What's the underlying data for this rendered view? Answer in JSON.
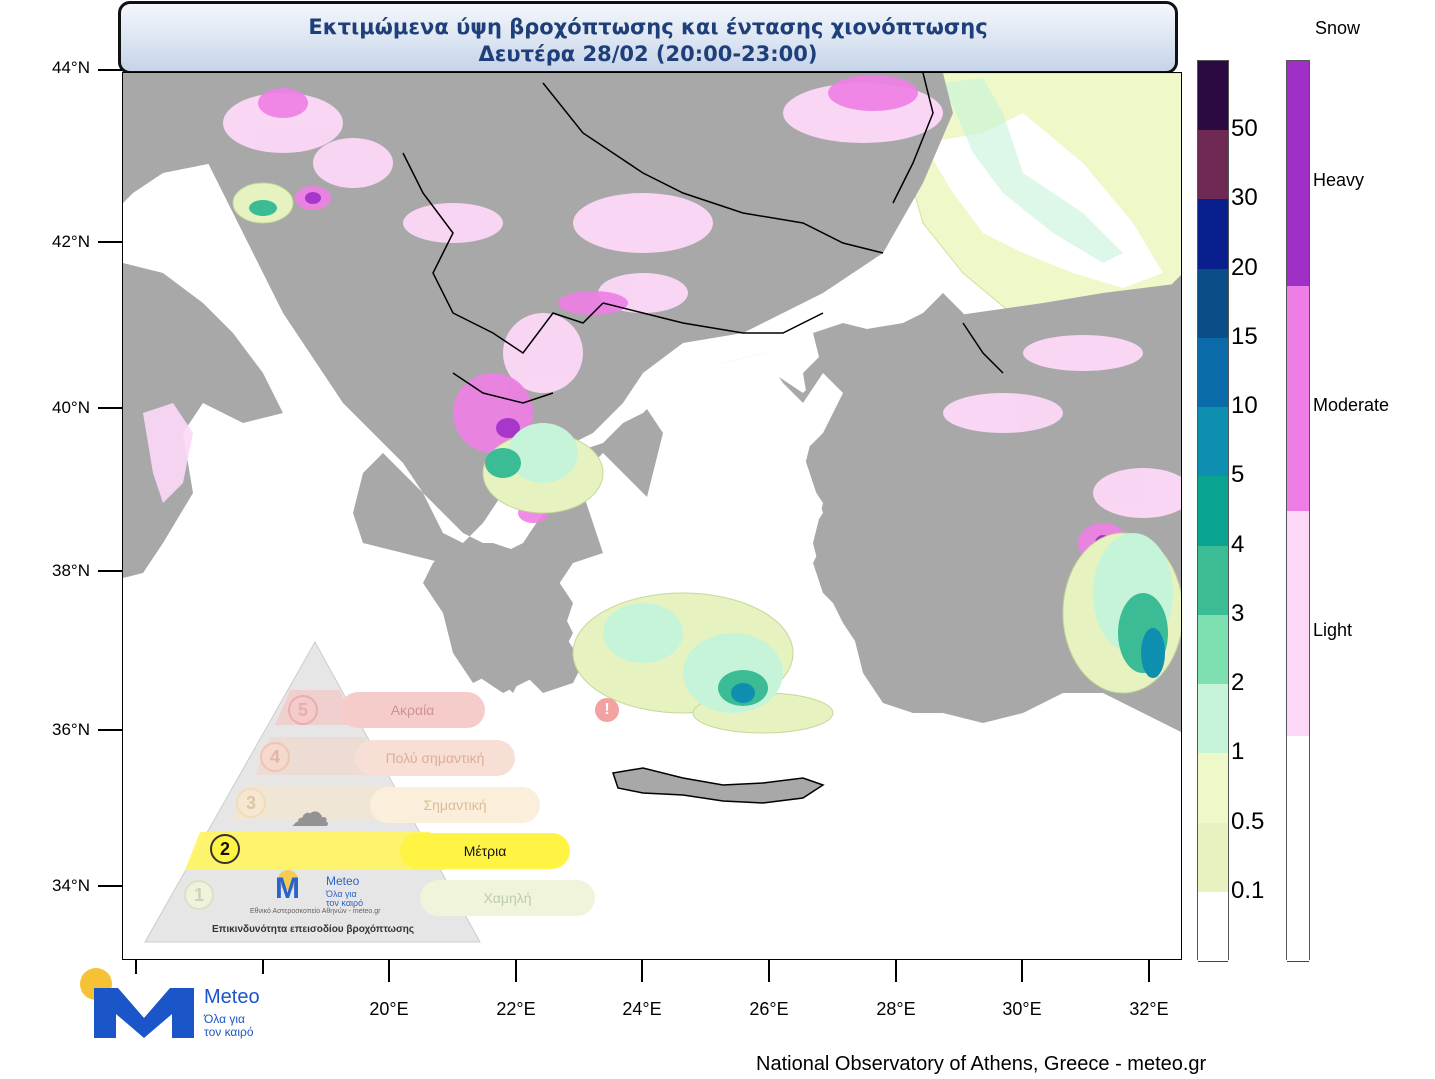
{
  "title": {
    "line1": "Εκτιμώμενα ύψη βροχόπτωσης και έντασης χιονόπτωσης",
    "line2": "Δευτέρα 28/02 (20:00-23:00)"
  },
  "lat_labels": [
    "44°N",
    "42°N",
    "40°N",
    "38°N",
    "36°N",
    "34°N"
  ],
  "lon_labels": [
    "20°E",
    "22°E",
    "24°E",
    "26°E",
    "28°E",
    "30°E",
    "32°E"
  ],
  "rain_colorbar": {
    "labels": [
      "50",
      "30",
      "20",
      "15",
      "10",
      "5",
      "4",
      "3",
      "2",
      "1",
      "0.5",
      "0.1"
    ],
    "colors": [
      "#2a0a40",
      "#6e2a55",
      "#0a1f8e",
      "#0a4e88",
      "#0b6aa8",
      "#0e8fb0",
      "#0aa38f",
      "#3bbc95",
      "#7ee0b0",
      "#c6f4d8",
      "#eef8c8",
      "#e6f2c0",
      "#ffffff"
    ]
  },
  "snow_colorbar": {
    "title": "Snow",
    "labels": [
      "Heavy",
      "Moderate",
      "Light"
    ],
    "colors": [
      "#a02fc8",
      "#ee7ee6",
      "#fcd8f8",
      "#ffffff"
    ]
  },
  "pyramid": {
    "levels": [
      {
        "num": "5",
        "label": "Ακραία"
      },
      {
        "num": "4",
        "label": "Πολύ σημαντική"
      },
      {
        "num": "3",
        "label": "Σημαντική"
      },
      {
        "num": "2",
        "label": "Μέτρια"
      },
      {
        "num": "1",
        "label": "Χαμηλή"
      }
    ],
    "active_level": "2",
    "logo_name": "Meteo",
    "logo_tag1": "Όλα για",
    "logo_tag2": "τον καιρό",
    "institute": "Εθνικό Αστεροσκοπείο Αθηνών - meteo.gr",
    "caption": "Επικινδυνότητα επεισοδίου βροχόπτωσης"
  },
  "logo": {
    "name": "Meteo",
    "tagline1": "Όλα για",
    "tagline2": "τον καιρό"
  },
  "footer": "National Observatory of Athens, Greece - meteo.gr"
}
